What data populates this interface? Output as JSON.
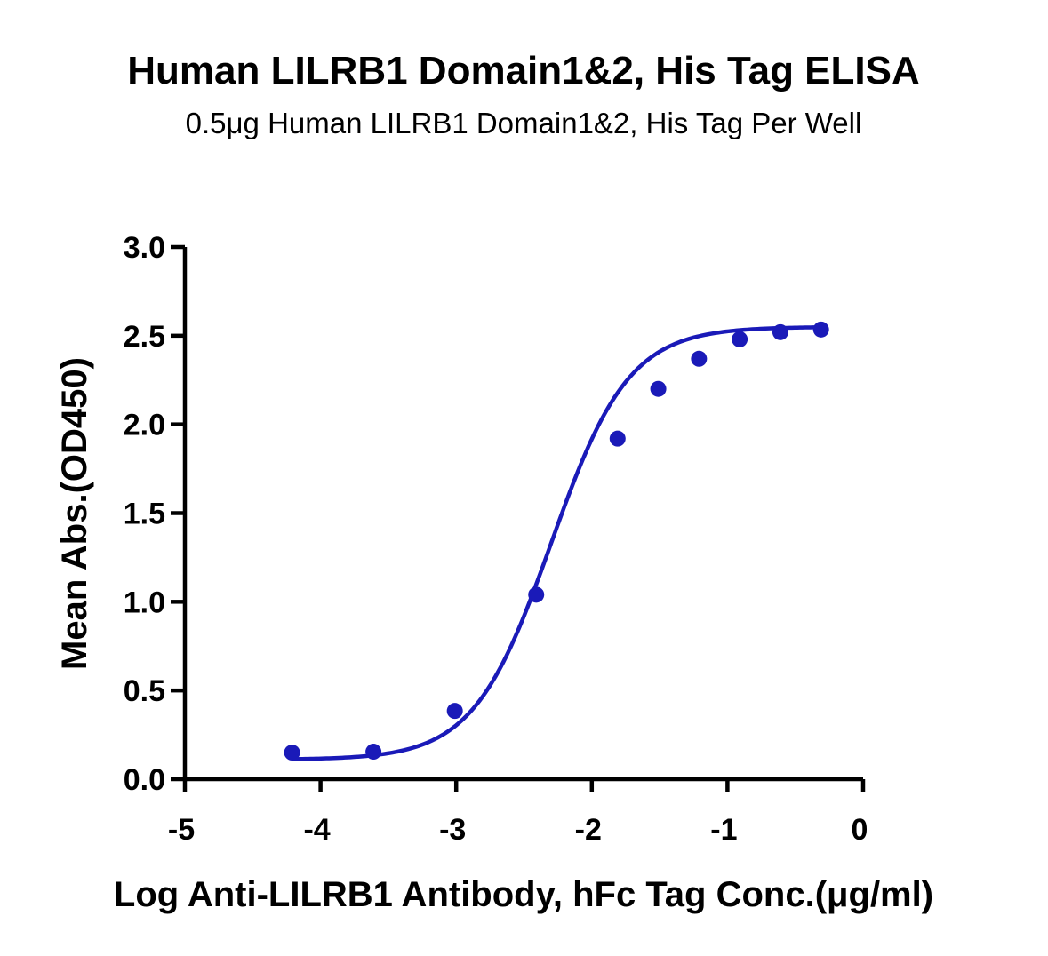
{
  "chart_data": {
    "type": "scatter",
    "title": "Human LILRB1 Domain1&2, His Tag ELISA",
    "subtitle": "0.5μg Human LILRB1 Domain1&2, His Tag Per Well",
    "xlabel": "Log Anti-LILRB1 Antibody, hFc Tag Conc.(μg/ml)",
    "ylabel": "Mean Abs.(OD450)",
    "xlim": [
      -5,
      0
    ],
    "ylim": [
      0,
      3
    ],
    "xticks": [
      "-5",
      "-4",
      "-3",
      "-2",
      "-1",
      "0"
    ],
    "yticks": [
      "0.0",
      "0.5",
      "1.0",
      "1.5",
      "2.0",
      "2.5",
      "3.0"
    ],
    "grid": false,
    "legend": "none",
    "series": [
      {
        "color": "#1a1ab8",
        "marker": "circle",
        "fit": "4-parameter logistic curve",
        "x": [
          -4.21,
          -3.61,
          -3.01,
          -2.41,
          -1.81,
          -1.51,
          -1.21,
          -0.91,
          -0.61,
          -0.31
        ],
        "y": [
          0.15,
          0.155,
          0.385,
          1.04,
          1.92,
          2.2,
          2.37,
          2.48,
          2.52,
          2.535
        ]
      }
    ]
  }
}
